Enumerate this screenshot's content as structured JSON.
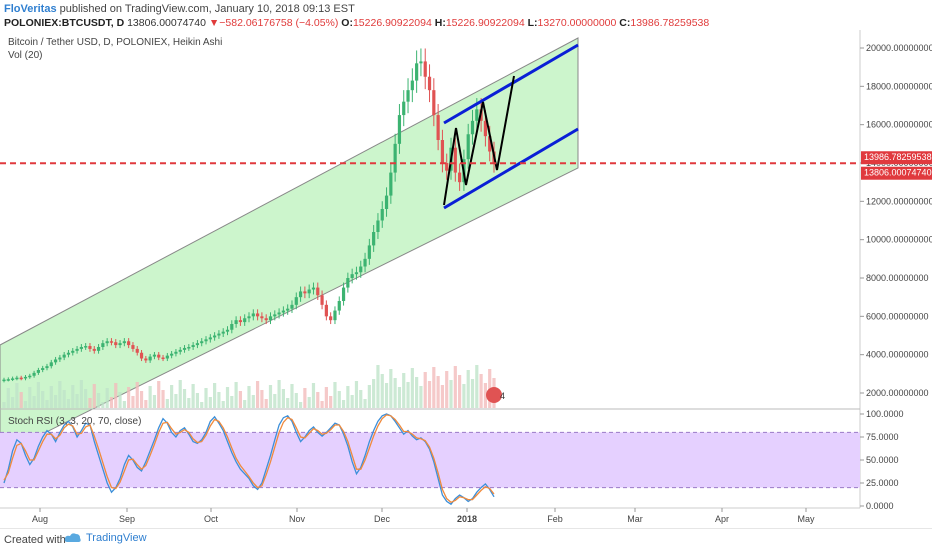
{
  "header": {
    "author": "FloVeritas",
    "published_text": "published on TradingView.com, January 10, 2018 09:13 EST",
    "symbol": "POLONIEX:BTCUSDT, D",
    "last_price": "13806.00074740",
    "change_arrow": "▼",
    "change": "−582.06176758 (−4.05%)",
    "o_label": "O:",
    "o_value": "15226.90922094",
    "h_label": "H:",
    "h_value": "15226.90922094",
    "l_label": "L:",
    "l_value": "13270.00000000",
    "c_label": "C:",
    "c_value": "13986.78259538"
  },
  "footer": {
    "created_with": "Created with",
    "brand": "TradingView",
    "logo_icon": "tradingview-cloud-icon"
  },
  "colors": {
    "up": "#3cb371",
    "down": "#e05353",
    "channel_fill": "#ccf5cc",
    "rsi_fill": "#e5d0ff",
    "blue": "#0a1fd6",
    "price_line": "#e0393e"
  },
  "chart_data": [
    {
      "type": "candlestick",
      "title": "Bitcoin / Tether USD, D, POLONIEX, Heikin Ashi",
      "indicator": "Vol (20)",
      "x_tick_labels": [
        "Aug",
        "Sep",
        "Oct",
        "Nov",
        "Dec",
        "2018",
        "Feb",
        "Mar",
        "Apr",
        "May"
      ],
      "y_ticks": [
        "2000.00000000",
        "4000.00000000",
        "6000.00000000",
        "8000.00000000",
        "10000.00000000",
        "12000.00000000",
        "14000.00000000",
        "16000.00000000",
        "18000.00000000",
        "20000.00000000"
      ],
      "ylim": [
        1500,
        21000
      ],
      "price_labels": [
        {
          "value": "13986.78259538",
          "price": 13987
        },
        {
          "value": "13806.00074740",
          "price": 13806
        }
      ],
      "horizontal_line": 13987,
      "volume_badge": "4",
      "closes": [
        2700,
        2720,
        2760,
        2800,
        2760,
        2840,
        2900,
        3050,
        3200,
        3300,
        3400,
        3600,
        3750,
        3850,
        4000,
        4100,
        4200,
        4300,
        4400,
        4450,
        4300,
        4200,
        4400,
        4600,
        4700,
        4650,
        4500,
        4600,
        4700,
        4500,
        4300,
        4100,
        3800,
        3700,
        3900,
        4000,
        3850,
        3800,
        3950,
        4050,
        4150,
        4250,
        4350,
        4400,
        4500,
        4600,
        4700,
        4800,
        4900,
        5000,
        5100,
        5200,
        5300,
        5600,
        5800,
        5700,
        5900,
        6000,
        6150,
        6000,
        5900,
        5800,
        6000,
        6100,
        6200,
        6300,
        6400,
        6600,
        7000,
        7300,
        7200,
        7400,
        7500,
        7100,
        6600,
        6000,
        5800,
        6300,
        6800,
        7500,
        8000,
        8200,
        8300,
        8600,
        9000,
        9700,
        10400,
        11000,
        11600,
        12300,
        13500,
        15000,
        16500,
        17200,
        17800,
        18300,
        19200,
        19300,
        18500,
        17800,
        16500,
        15200,
        14000,
        13600,
        14800,
        13500,
        13000,
        14200,
        15500,
        16200,
        16800,
        16200,
        15400,
        14600,
        13987
      ]
    },
    {
      "type": "line",
      "title": "Stoch RSI (3, 3, 20, 70, close)",
      "y_ticks": [
        "100.0000",
        "75.0000",
        "50.0000",
        "25.0000",
        "0.0000"
      ],
      "ylim": [
        -3,
        103
      ],
      "bands": [
        20,
        80
      ],
      "series": [
        {
          "values": [
            25,
            40,
            60,
            72,
            68,
            55,
            45,
            52,
            65,
            75,
            82,
            78,
            70,
            80,
            88,
            92,
            86,
            75,
            82,
            90,
            88,
            70,
            55,
            40,
            25,
            15,
            20,
            30,
            45,
            55,
            50,
            42,
            38,
            48,
            60,
            72,
            85,
            95,
            90,
            80,
            75,
            82,
            85,
            78,
            70,
            68,
            72,
            80,
            92,
            97,
            90,
            82,
            70,
            58,
            48,
            40,
            35,
            30,
            22,
            18,
            25,
            40,
            55,
            72,
            88,
            96,
            98,
            92,
            80,
            70,
            75,
            82,
            86,
            80,
            76,
            80,
            85,
            90,
            88,
            78,
            65,
            48,
            35,
            42,
            55,
            70,
            82,
            92,
            98,
            100,
            98,
            92,
            85,
            78,
            82,
            76,
            72,
            74,
            70,
            62,
            48,
            30,
            12,
            5,
            2,
            8,
            12,
            9,
            5,
            8,
            15,
            20,
            24,
            18,
            10
          ]
        },
        {
          "values": [
            28,
            36,
            52,
            66,
            68,
            60,
            50,
            50,
            60,
            70,
            78,
            78,
            73,
            77,
            85,
            89,
            87,
            78,
            79,
            86,
            88,
            76,
            62,
            47,
            32,
            20,
            19,
            26,
            38,
            50,
            51,
            45,
            40,
            44,
            55,
            67,
            80,
            90,
            91,
            84,
            78,
            80,
            83,
            80,
            73,
            69,
            70,
            77,
            87,
            94,
            92,
            85,
            75,
            63,
            52,
            44,
            38,
            32,
            25,
            20,
            22,
            34,
            48,
            64,
            80,
            91,
            96,
            94,
            85,
            75,
            74,
            79,
            84,
            82,
            78,
            79,
            83,
            88,
            88,
            81,
            70,
            55,
            40,
            40,
            50,
            63,
            76,
            87,
            95,
            99,
            98,
            94,
            88,
            81,
            81,
            78,
            74,
            73,
            71,
            64,
            52,
            36,
            18,
            8,
            4,
            6,
            10,
            9,
            7,
            7,
            12,
            17,
            21,
            19,
            13
          ]
        }
      ]
    }
  ]
}
